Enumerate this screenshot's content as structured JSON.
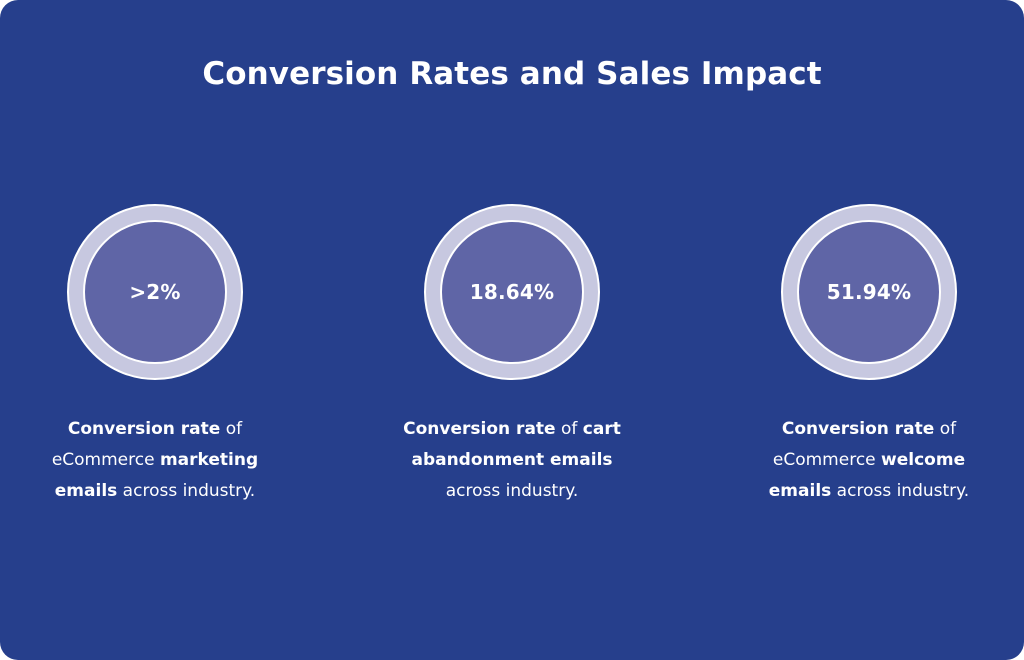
{
  "title": "Conversion Rates and Sales Impact",
  "stats": [
    {
      "value": ">2%",
      "description": {
        "line1_bold": "Conversion rate",
        "line1_rest": " of",
        "line2_regular": "eCommerce ",
        "line2_bold": "marketing",
        "line3_bold": "emails",
        "line3_rest": " across industry."
      }
    },
    {
      "value": "18.64%",
      "description": {
        "line1_bold": "Conversion rate",
        "line1_rest": " of ",
        "line1_bold2": "cart",
        "line2_bold": "abandonment emails",
        "line3_regular": "across industry."
      }
    },
    {
      "value": "51.94%",
      "description": {
        "line1_bold": "Conversion rate",
        "line1_rest": " of",
        "line2_regular": "eCommerce ",
        "line2_bold": "welcome",
        "line3_bold": "emails",
        "line3_rest": " across industry."
      }
    }
  ],
  "colors": {
    "background": "#263f8c",
    "ring": "#c7c8e0",
    "disc": "#5f65a6",
    "text": "#ffffff"
  }
}
